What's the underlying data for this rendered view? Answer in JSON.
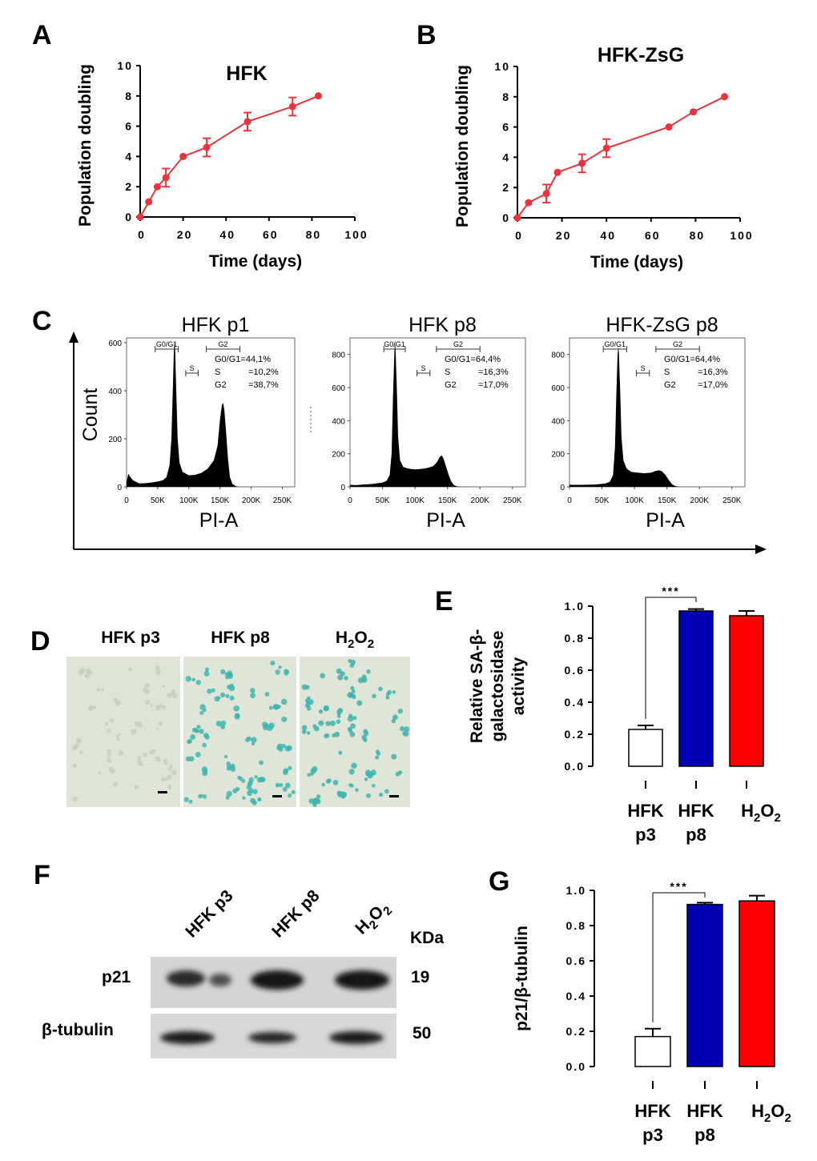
{
  "panels": {
    "A": "A",
    "B": "B",
    "C": "C",
    "D": "D",
    "E": "E",
    "F": "F",
    "G": "G"
  },
  "chart_data": [
    {
      "id": "A",
      "type": "line",
      "title": "HFK",
      "xlabel": "Time (days)",
      "ylabel": "Population doubling",
      "xlim": [
        0,
        100
      ],
      "ylim": [
        0,
        10
      ],
      "xticks": [
        "0",
        "20",
        "40",
        "60",
        "80",
        "100"
      ],
      "yticks": [
        "0",
        "2",
        "4",
        "6",
        "8",
        "10"
      ],
      "color": "#e8343c",
      "series": [
        {
          "x": [
            0,
            4,
            8,
            12,
            20,
            31,
            50,
            71,
            83
          ],
          "y": [
            0,
            1,
            2,
            2.6,
            4,
            4.6,
            6.3,
            7.3,
            8
          ],
          "err": [
            0,
            0,
            0,
            0.6,
            0,
            0.6,
            0.6,
            0.6,
            0
          ]
        }
      ]
    },
    {
      "id": "B",
      "type": "line",
      "title": "HFK-ZsG",
      "xlabel": "Time (days)",
      "ylabel": "Population doubling",
      "xlim": [
        0,
        100
      ],
      "ylim": [
        0,
        10
      ],
      "xticks": [
        "0",
        "20",
        "40",
        "60",
        "80",
        "100"
      ],
      "yticks": [
        "0",
        "2",
        "4",
        "6",
        "8",
        "10"
      ],
      "color": "#e8343c",
      "series": [
        {
          "x": [
            0,
            5,
            13,
            18,
            29,
            40,
            68,
            79,
            93
          ],
          "y": [
            0,
            1,
            1.6,
            3,
            3.6,
            4.6,
            6,
            7,
            8
          ],
          "err": [
            0,
            0,
            0.6,
            0,
            0.6,
            0.6,
            0,
            0,
            0
          ]
        }
      ]
    },
    {
      "id": "C1",
      "type": "area",
      "title": "HFK p1",
      "xlabel": "PI-A",
      "xticks": [
        "0",
        "50K",
        "100K",
        "150K",
        "200K",
        "250K"
      ],
      "yticks": [
        "0",
        "200",
        "400",
        "600"
      ],
      "ylim": [
        0,
        620
      ],
      "gates": {
        "g0g1": "G0/G1",
        "s": "S",
        "g2": "G2"
      },
      "stats": [
        "G0/G1=44,1%",
        "S",
        "=10,2%",
        "G2",
        "=38,7%"
      ],
      "profile": [
        [
          0,
          20
        ],
        [
          3,
          55
        ],
        [
          5,
          45
        ],
        [
          10,
          28
        ],
        [
          20,
          14
        ],
        [
          30,
          15
        ],
        [
          40,
          18
        ],
        [
          50,
          22
        ],
        [
          58,
          27
        ],
        [
          64,
          40
        ],
        [
          69,
          90
        ],
        [
          72,
          200
        ],
        [
          74,
          380
        ],
        [
          76,
          570
        ],
        [
          77,
          610
        ],
        [
          78,
          570
        ],
        [
          80,
          380
        ],
        [
          82,
          200
        ],
        [
          85,
          100
        ],
        [
          90,
          62
        ],
        [
          100,
          48
        ],
        [
          110,
          50
        ],
        [
          120,
          58
        ],
        [
          130,
          75
        ],
        [
          140,
          110
        ],
        [
          146,
          170
        ],
        [
          150,
          280
        ],
        [
          153,
          340
        ],
        [
          155,
          350
        ],
        [
          157,
          320
        ],
        [
          160,
          220
        ],
        [
          163,
          110
        ],
        [
          166,
          40
        ],
        [
          170,
          12
        ],
        [
          175,
          3
        ],
        [
          180,
          0
        ],
        [
          270,
          0
        ]
      ]
    },
    {
      "id": "C2",
      "type": "area",
      "title": "HFK p8",
      "xlabel": "PI-A",
      "xticks": [
        "0",
        "50K",
        "100K",
        "150K",
        "200K",
        "250K"
      ],
      "yticks": [
        "0",
        "200",
        "400",
        "600",
        "800"
      ],
      "ylim": [
        0,
        900
      ],
      "gates": {
        "g0g1": "G0/G1",
        "s": "S",
        "g2": "G2"
      },
      "stats": [
        "G0/G1=64,4%",
        "S",
        "=16,3%",
        "G2",
        "=17,0%"
      ],
      "profile": [
        [
          0,
          12
        ],
        [
          10,
          10
        ],
        [
          20,
          14
        ],
        [
          30,
          16
        ],
        [
          40,
          20
        ],
        [
          50,
          26
        ],
        [
          56,
          35
        ],
        [
          61,
          70
        ],
        [
          64,
          200
        ],
        [
          66,
          520
        ],
        [
          68,
          780
        ],
        [
          69,
          870
        ],
        [
          70,
          840
        ],
        [
          72,
          600
        ],
        [
          74,
          300
        ],
        [
          77,
          160
        ],
        [
          82,
          120
        ],
        [
          90,
          110
        ],
        [
          100,
          105
        ],
        [
          110,
          108
        ],
        [
          120,
          115
        ],
        [
          128,
          125
        ],
        [
          134,
          150
        ],
        [
          138,
          180
        ],
        [
          141,
          190
        ],
        [
          144,
          170
        ],
        [
          148,
          120
        ],
        [
          152,
          70
        ],
        [
          156,
          30
        ],
        [
          160,
          10
        ],
        [
          165,
          2
        ],
        [
          175,
          0
        ],
        [
          270,
          0
        ]
      ]
    },
    {
      "id": "C3",
      "type": "area",
      "title": "HFK-ZsG  p8",
      "xlabel": "PI-A",
      "xticks": [
        "0",
        "50K",
        "100K",
        "150K",
        "200K",
        "250K"
      ],
      "yticks": [
        "0",
        "200",
        "400",
        "600",
        "800"
      ],
      "ylim": [
        0,
        900
      ],
      "gates": {
        "g0g1": "G0/G1",
        "s": "S",
        "g2": "G2"
      },
      "stats": [
        "G0/G1=64,4%",
        "S",
        "=16,3%",
        "G2",
        "=17,0%"
      ],
      "profile": [
        [
          0,
          12
        ],
        [
          20,
          12
        ],
        [
          40,
          14
        ],
        [
          55,
          20
        ],
        [
          62,
          30
        ],
        [
          67,
          70
        ],
        [
          70,
          240
        ],
        [
          72,
          540
        ],
        [
          74,
          800
        ],
        [
          75,
          850
        ],
        [
          76,
          810
        ],
        [
          78,
          580
        ],
        [
          80,
          300
        ],
        [
          83,
          160
        ],
        [
          88,
          110
        ],
        [
          95,
          90
        ],
        [
          105,
          85
        ],
        [
          115,
          82
        ],
        [
          125,
          85
        ],
        [
          132,
          95
        ],
        [
          137,
          100
        ],
        [
          142,
          95
        ],
        [
          148,
          70
        ],
        [
          153,
          40
        ],
        [
          158,
          15
        ],
        [
          163,
          4
        ],
        [
          170,
          0
        ],
        [
          270,
          0
        ]
      ]
    },
    {
      "id": "E",
      "type": "bar",
      "ylabel": "Relative SA-β-galactosidase activity",
      "ylabel_lines": [
        "Relative SA-β-",
        "galactosidase",
        "activity"
      ],
      "categories": [
        [
          "HFK",
          "p3"
        ],
        [
          "HFK",
          "p8"
        ],
        [
          "H2O2"
        ]
      ],
      "values": [
        0.23,
        0.97,
        0.94
      ],
      "err": [
        0.025,
        0.012,
        0.03
      ],
      "colors": [
        "#ffffff",
        "#0000b4",
        "#ff0000"
      ],
      "ylim": [
        0,
        1.0
      ],
      "yticks": [
        "0.0",
        "0.2",
        "0.4",
        "0.6",
        "0.8",
        "1.0"
      ],
      "significance": "***"
    },
    {
      "id": "G",
      "type": "bar",
      "ylabel": "p21/β-tubulin",
      "categories": [
        [
          "HFK",
          "p3"
        ],
        [
          "HFK",
          "p8"
        ],
        [
          "H2O2"
        ]
      ],
      "values": [
        0.17,
        0.92,
        0.94
      ],
      "err": [
        0.045,
        0.01,
        0.03
      ],
      "colors": [
        "#ffffff",
        "#0000b4",
        "#ff0000"
      ],
      "ylim": [
        0,
        1.0
      ],
      "yticks": [
        "0.0",
        "0.2",
        "0.4",
        "0.6",
        "0.8",
        "1.0"
      ],
      "significance": "***"
    }
  ],
  "flow_axes": {
    "count_label": "Count"
  },
  "stain_images": {
    "labels": [
      "HFK p3",
      "HFK p8",
      "H2O2"
    ]
  },
  "western_blot": {
    "lanes": [
      "HFK p3",
      "HFK p8",
      "H2O2"
    ],
    "unit_label": "KDa",
    "rows": [
      {
        "name": "p21",
        "kda": "19"
      },
      {
        "name": "β-tubulin",
        "kda": "50"
      }
    ]
  }
}
